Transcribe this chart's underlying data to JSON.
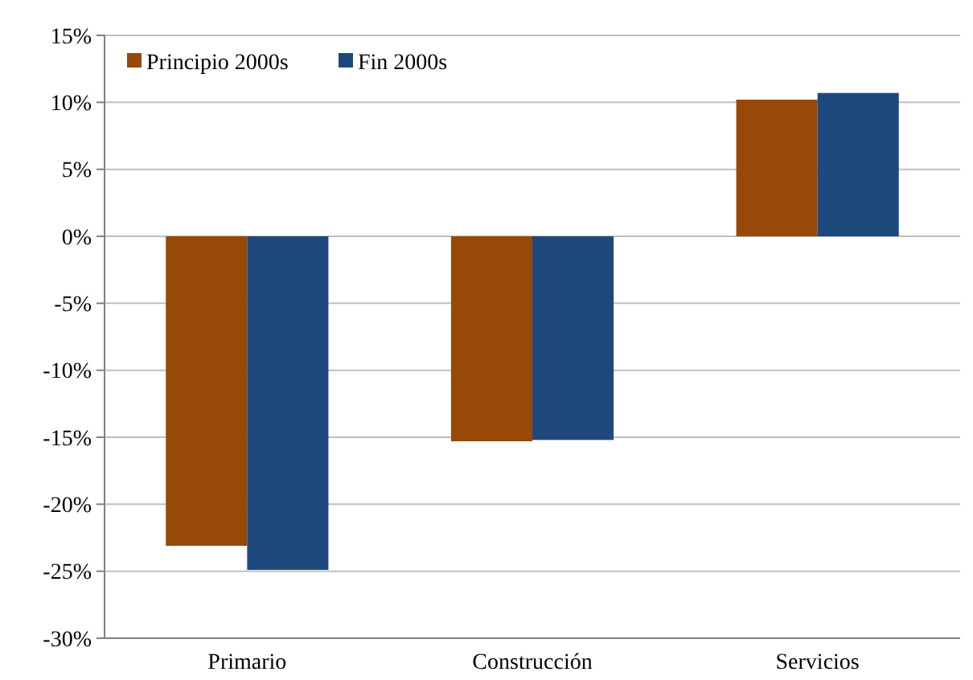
{
  "chart_data": {
    "type": "bar",
    "categories": [
      "Primario",
      "Construcción",
      "Servicios"
    ],
    "series": [
      {
        "name": "Principio 2000s",
        "color": "#984807",
        "values": [
          -23.1,
          -15.3,
          10.2
        ]
      },
      {
        "name": "Fin 2000s",
        "color": "#1f497d",
        "values": [
          -24.9,
          -15.2,
          10.7
        ]
      }
    ],
    "ylim": [
      -30,
      15
    ],
    "yticks": [
      {
        "value": -30,
        "label": "-30%"
      },
      {
        "value": -25,
        "label": "-25%"
      },
      {
        "value": -20,
        "label": "-20%"
      },
      {
        "value": -15,
        "label": "-15%"
      },
      {
        "value": -10,
        "label": "-10%"
      },
      {
        "value": -5,
        "label": "-5%"
      },
      {
        "value": 0,
        "label": "0%"
      },
      {
        "value": 5,
        "label": "5%"
      },
      {
        "value": 10,
        "label": "10%"
      },
      {
        "value": 15,
        "label": "15%"
      }
    ],
    "grid": "y",
    "legend": "top left"
  }
}
